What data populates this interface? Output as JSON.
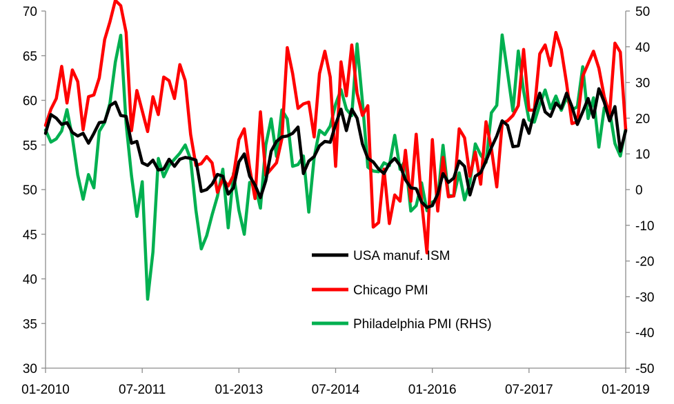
{
  "chart_data": {
    "type": "line",
    "title": "",
    "xlabel": "",
    "ylabel": "",
    "y_left": {
      "min": 30,
      "max": 70,
      "step": 5,
      "ticks": [
        70,
        65,
        60,
        55,
        50,
        45,
        40,
        35,
        30
      ]
    },
    "y_right": {
      "min": -50,
      "max": 50,
      "step": 10,
      "ticks": [
        50,
        40,
        30,
        20,
        10,
        0,
        -10,
        -20,
        -30,
        -40,
        -50
      ]
    },
    "x_range": [
      "01-2010",
      "01-2019"
    ],
    "x_ticks": [
      "01-2010",
      "07-2011",
      "01-2013",
      "07-2014",
      "01-2016",
      "07-2017",
      "01-2019"
    ],
    "grid": false,
    "legend_position": "center-right",
    "series": [
      {
        "name": "USA manuf. ISM",
        "axis": "left",
        "color": "#000000",
        "x": [
          "2010-01",
          "2010-02",
          "2010-03",
          "2010-04",
          "2010-05",
          "2010-06",
          "2010-07",
          "2010-08",
          "2010-09",
          "2010-10",
          "2010-11",
          "2010-12",
          "2011-01",
          "2011-02",
          "2011-03",
          "2011-04",
          "2011-05",
          "2011-06",
          "2011-07",
          "2011-08",
          "2011-09",
          "2011-10",
          "2011-11",
          "2011-12",
          "2012-01",
          "2012-02",
          "2012-03",
          "2012-04",
          "2012-05",
          "2012-06",
          "2012-07",
          "2012-08",
          "2012-09",
          "2012-10",
          "2012-11",
          "2012-12",
          "2013-01",
          "2013-02",
          "2013-03",
          "2013-04",
          "2013-05",
          "2013-06",
          "2013-07",
          "2013-08",
          "2013-09",
          "2013-10",
          "2013-11",
          "2013-12",
          "2014-01",
          "2014-02",
          "2014-03",
          "2014-04",
          "2014-05",
          "2014-06",
          "2014-07",
          "2014-08",
          "2014-09",
          "2014-10",
          "2014-11",
          "2014-12",
          "2015-01",
          "2015-02",
          "2015-03",
          "2015-04",
          "2015-05",
          "2015-06",
          "2015-07",
          "2015-08",
          "2015-09",
          "2015-10",
          "2015-11",
          "2015-12",
          "2016-01",
          "2016-02",
          "2016-03",
          "2016-04",
          "2016-05",
          "2016-06",
          "2016-07",
          "2016-08",
          "2016-09",
          "2016-10",
          "2016-11",
          "2016-12",
          "2017-01",
          "2017-02",
          "2017-03",
          "2017-04",
          "2017-05",
          "2017-06",
          "2017-07",
          "2017-08",
          "2017-09",
          "2017-10",
          "2017-11",
          "2017-12",
          "2018-01",
          "2018-02",
          "2018-03",
          "2018-04",
          "2018-05",
          "2018-06",
          "2018-07",
          "2018-08",
          "2018-09",
          "2018-10",
          "2018-11",
          "2018-12",
          "2019-01"
        ],
        "values": [
          56.3,
          58.4,
          58.0,
          57.3,
          57.5,
          56.4,
          56.0,
          56.3,
          55.2,
          56.3,
          57.5,
          57.6,
          59.4,
          59.8,
          58.3,
          58.2,
          55.2,
          55.4,
          53.0,
          52.7,
          53.3,
          52.2,
          52.3,
          53.4,
          52.6,
          53.4,
          53.6,
          53.5,
          53.3,
          49.8,
          50.0,
          50.6,
          51.7,
          51.5,
          49.5,
          50.2,
          53.1,
          54.0,
          51.5,
          50.5,
          49.1,
          51.0,
          54.3,
          55.4,
          55.9,
          56.0,
          56.3,
          57.0,
          51.8,
          53.2,
          53.7,
          54.9,
          55.4,
          55.3,
          57.3,
          59.0,
          56.6,
          59.0,
          58.0,
          55.1,
          53.5,
          53.1,
          52.3,
          51.8,
          52.9,
          53.5,
          52.7,
          51.1,
          50.2,
          50.1,
          48.6,
          48.0,
          48.2,
          49.5,
          51.8,
          50.8,
          51.3,
          53.2,
          52.6,
          49.4,
          51.5,
          51.9,
          53.2,
          54.7,
          56.0,
          57.7,
          57.2,
          54.8,
          54.9,
          57.8,
          56.3,
          58.8,
          60.8,
          58.7,
          58.2,
          59.7,
          59.1,
          60.8,
          59.3,
          57.3,
          58.7,
          60.2,
          58.1,
          61.3,
          59.8,
          57.7,
          59.3,
          54.3,
          56.6
        ]
      },
      {
        "name": "Chicago PMI",
        "axis": "left",
        "color": "#ff0000",
        "x": [
          "2010-01",
          "2010-02",
          "2010-03",
          "2010-04",
          "2010-05",
          "2010-06",
          "2010-07",
          "2010-08",
          "2010-09",
          "2010-10",
          "2010-11",
          "2010-12",
          "2011-01",
          "2011-02",
          "2011-03",
          "2011-04",
          "2011-05",
          "2011-06",
          "2011-07",
          "2011-08",
          "2011-09",
          "2011-10",
          "2011-11",
          "2011-12",
          "2012-01",
          "2012-02",
          "2012-03",
          "2012-04",
          "2012-05",
          "2012-06",
          "2012-07",
          "2012-08",
          "2012-09",
          "2012-10",
          "2012-11",
          "2012-12",
          "2013-01",
          "2013-02",
          "2013-03",
          "2013-04",
          "2013-05",
          "2013-06",
          "2013-07",
          "2013-08",
          "2013-09",
          "2013-10",
          "2013-11",
          "2013-12",
          "2014-01",
          "2014-02",
          "2014-03",
          "2014-04",
          "2014-05",
          "2014-06",
          "2014-07",
          "2014-08",
          "2014-09",
          "2014-10",
          "2014-11",
          "2014-12",
          "2015-01",
          "2015-02",
          "2015-03",
          "2015-04",
          "2015-05",
          "2015-06",
          "2015-07",
          "2015-08",
          "2015-09",
          "2015-10",
          "2015-11",
          "2015-12",
          "2016-01",
          "2016-02",
          "2016-03",
          "2016-04",
          "2016-05",
          "2016-06",
          "2016-07",
          "2016-08",
          "2016-09",
          "2016-10",
          "2016-11",
          "2016-12",
          "2017-01",
          "2017-02",
          "2017-03",
          "2017-04",
          "2017-05",
          "2017-06",
          "2017-07",
          "2017-08",
          "2017-09",
          "2017-10",
          "2017-11",
          "2017-12",
          "2018-01",
          "2018-02",
          "2018-03",
          "2018-04",
          "2018-05",
          "2018-06",
          "2018-07",
          "2018-08",
          "2018-09",
          "2018-10",
          "2018-11",
          "2018-12",
          "2019-01"
        ],
        "values": [
          57.2,
          59.0,
          60.2,
          63.8,
          59.7,
          63.4,
          62.1,
          56.7,
          60.4,
          60.6,
          62.5,
          66.8,
          68.8,
          71.2,
          70.6,
          67.6,
          56.6,
          61.1,
          58.8,
          56.5,
          60.4,
          58.4,
          62.6,
          62.2,
          60.2,
          64.0,
          62.2,
          56.2,
          52.7,
          52.9,
          53.7,
          53.0,
          49.7,
          51.2,
          50.4,
          51.6,
          55.6,
          56.8,
          52.4,
          49.0,
          58.7,
          51.6,
          52.3,
          53.0,
          55.7,
          65.9,
          63.0,
          59.1,
          59.6,
          59.8,
          55.9,
          63.0,
          65.5,
          62.6,
          52.6,
          64.3,
          60.5,
          66.2,
          60.8,
          58.3,
          59.4,
          45.8,
          46.3,
          52.3,
          46.2,
          49.4,
          48.7,
          54.4,
          48.7,
          56.2,
          48.7,
          42.9,
          55.6,
          47.6,
          53.6,
          49.2,
          49.3,
          56.8,
          55.8,
          51.5,
          54.2,
          50.6,
          57.6,
          54.6,
          50.3,
          57.4,
          57.7,
          58.3,
          59.4,
          65.7,
          58.9,
          58.9,
          65.2,
          66.2,
          63.9,
          67.6,
          65.7,
          61.9,
          57.4,
          57.6,
          62.7,
          64.1,
          65.5,
          63.6,
          60.4,
          58.4,
          66.4,
          65.4,
          56.7
        ]
      },
      {
        "name": "Philadelphia PMI (RHS)",
        "axis": "right",
        "color": "#00b050",
        "x": [
          "2010-01",
          "2010-02",
          "2010-03",
          "2010-04",
          "2010-05",
          "2010-06",
          "2010-07",
          "2010-08",
          "2010-09",
          "2010-10",
          "2010-11",
          "2010-12",
          "2011-01",
          "2011-02",
          "2011-03",
          "2011-04",
          "2011-05",
          "2011-06",
          "2011-07",
          "2011-08",
          "2011-09",
          "2011-10",
          "2011-11",
          "2011-12",
          "2012-01",
          "2012-02",
          "2012-03",
          "2012-04",
          "2012-05",
          "2012-06",
          "2012-07",
          "2012-08",
          "2012-09",
          "2012-10",
          "2012-11",
          "2012-12",
          "2013-01",
          "2013-02",
          "2013-03",
          "2013-04",
          "2013-05",
          "2013-06",
          "2013-07",
          "2013-08",
          "2013-09",
          "2013-10",
          "2013-11",
          "2013-12",
          "2014-01",
          "2014-02",
          "2014-03",
          "2014-04",
          "2014-05",
          "2014-06",
          "2014-07",
          "2014-08",
          "2014-09",
          "2014-10",
          "2014-11",
          "2014-12",
          "2015-01",
          "2015-02",
          "2015-03",
          "2015-04",
          "2015-05",
          "2015-06",
          "2015-07",
          "2015-08",
          "2015-09",
          "2015-10",
          "2015-11",
          "2015-12",
          "2016-01",
          "2016-02",
          "2016-03",
          "2016-04",
          "2016-05",
          "2016-06",
          "2016-07",
          "2016-08",
          "2016-09",
          "2016-10",
          "2016-11",
          "2016-12",
          "2017-01",
          "2017-02",
          "2017-03",
          "2017-04",
          "2017-05",
          "2017-06",
          "2017-07",
          "2017-08",
          "2017-09",
          "2017-10",
          "2017-11",
          "2017-12",
          "2018-01",
          "2018-02",
          "2018-03",
          "2018-04",
          "2018-05",
          "2018-06",
          "2018-07",
          "2018-08",
          "2018-09",
          "2018-10",
          "2018-11",
          "2018-12",
          "2019-01"
        ],
        "values": [
          16.7,
          13.3,
          14.2,
          16.4,
          22.4,
          14.6,
          4.1,
          -2.7,
          4.2,
          0.5,
          16.3,
          18.8,
          24.2,
          35.7,
          43.2,
          18.5,
          3.9,
          -7.5,
          2.2,
          -30.7,
          -17.5,
          8.7,
          3.6,
          6.8,
          8.5,
          10.2,
          12.5,
          8.5,
          -5.8,
          -16.6,
          -12.9,
          -7.1,
          -1.9,
          5.7,
          -10.7,
          4.6,
          -5.8,
          -12.5,
          2.0,
          1.3,
          -5.2,
          12.5,
          19.8,
          9.3,
          22.3,
          19.8,
          6.5,
          7.0,
          9.4,
          -6.3,
          9.0,
          16.6,
          15.4,
          17.8,
          23.9,
          28.0,
          22.5,
          20.7,
          40.8,
          24.5,
          6.3,
          5.2,
          5.0,
          7.5,
          6.7,
          15.2,
          5.7,
          8.3,
          -6.0,
          -4.5,
          1.9,
          -5.9,
          -3.5,
          -2.8,
          12.4,
          -1.6,
          -1.8,
          4.7,
          -2.9,
          2.0,
          12.8,
          9.7,
          7.6,
          21.5,
          23.6,
          43.3,
          32.8,
          22.0,
          38.8,
          27.6,
          19.5,
          18.9,
          23.8,
          27.9,
          22.7,
          26.2,
          22.2,
          25.8,
          22.3,
          23.2,
          34.4,
          19.9,
          25.7,
          11.9,
          22.9,
          22.2,
          12.9,
          9.4,
          17.0
        ]
      }
    ]
  }
}
